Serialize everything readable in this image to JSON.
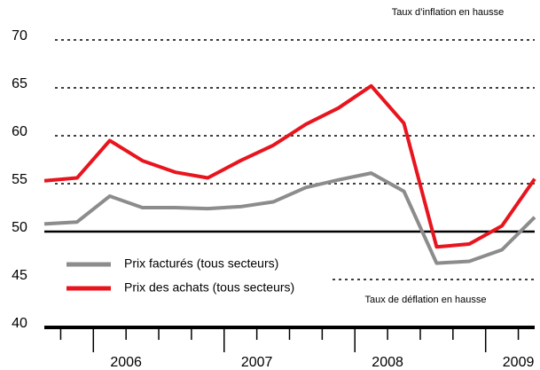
{
  "chart_data": {
    "type": "line",
    "categories": [
      null,
      null,
      "2006",
      null,
      null,
      null,
      "2007",
      null,
      null,
      null,
      "2008",
      null,
      null,
      null,
      "2009",
      null
    ],
    "series": [
      {
        "name": "Prix facturés (tous secteurs)",
        "color": "#8c8c8c",
        "values": [
          50.8,
          51.0,
          53.7,
          52.5,
          52.5,
          52.4,
          52.6,
          53.1,
          54.6,
          55.4,
          56.1,
          54.2,
          46.7,
          46.9,
          48.1,
          51.5
        ]
      },
      {
        "name": "Prix des achats (tous secteurs)",
        "color": "#e8141e",
        "values": [
          55.3,
          55.6,
          59.5,
          57.4,
          56.2,
          55.6,
          57.4,
          59.0,
          61.2,
          62.9,
          65.2,
          61.3,
          48.4,
          48.7,
          50.6,
          55.5
        ]
      }
    ],
    "ylim": [
      40,
      70
    ],
    "yticks": [
      40,
      45,
      50,
      55,
      60,
      65,
      70
    ],
    "baseline": 50,
    "grid": true,
    "annotations": [
      "Taux d’inflation en hausse",
      "Taux de déflation en hausse"
    ]
  }
}
